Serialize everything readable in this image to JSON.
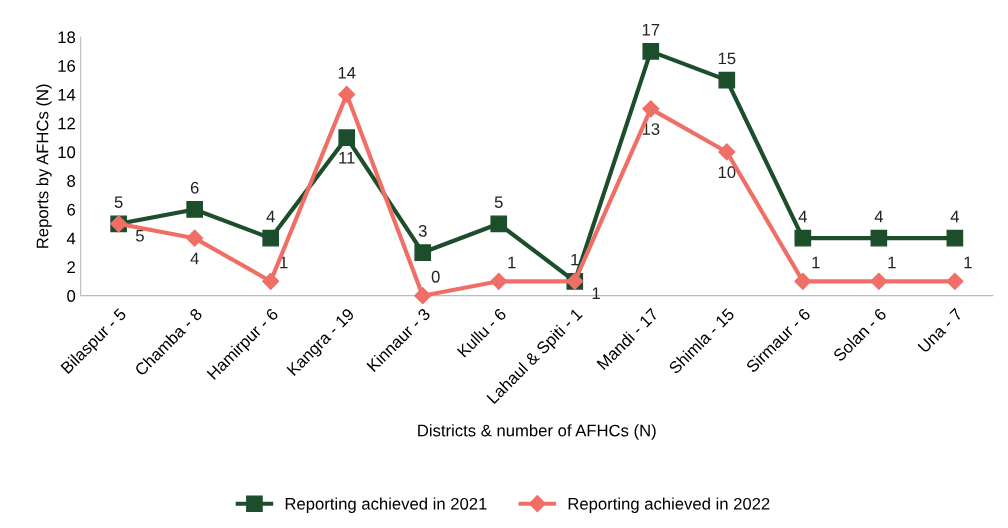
{
  "chart_data": {
    "type": "line",
    "xlabel": "Districts & number of AFHCs (N)",
    "ylabel": "Reports by AFHCs (N)",
    "categories": [
      "Bilaspur - 5",
      "Chamba - 8",
      "Hamirpur - 6",
      "Kangra - 19",
      "Kinnaur - 3",
      "Kullu - 6",
      "Lahaul & Spiti - 1",
      "Mandi - 17",
      "Shimla - 15",
      "Sirmaur - 6",
      "Solan - 6",
      "Una - 7"
    ],
    "series": [
      {
        "name": "Reporting achieved in 2021",
        "color": "#1d4e2c",
        "marker": "square",
        "values": [
          5,
          6,
          4,
          11,
          3,
          5,
          1,
          17,
          15,
          4,
          4,
          4
        ]
      },
      {
        "name": "Reporting achieved in 2022",
        "color": "#ef6f67",
        "marker": "diamond",
        "values": [
          5,
          4,
          1,
          14,
          0,
          1,
          1,
          13,
          10,
          1,
          1,
          1
        ]
      }
    ],
    "ylim": [
      0,
      18
    ],
    "yticks": [
      0,
      2,
      4,
      6,
      8,
      10,
      12,
      14,
      16,
      18
    ],
    "grid": false,
    "legend": "bottom",
    "data_labels": true,
    "line_style": "solid"
  }
}
